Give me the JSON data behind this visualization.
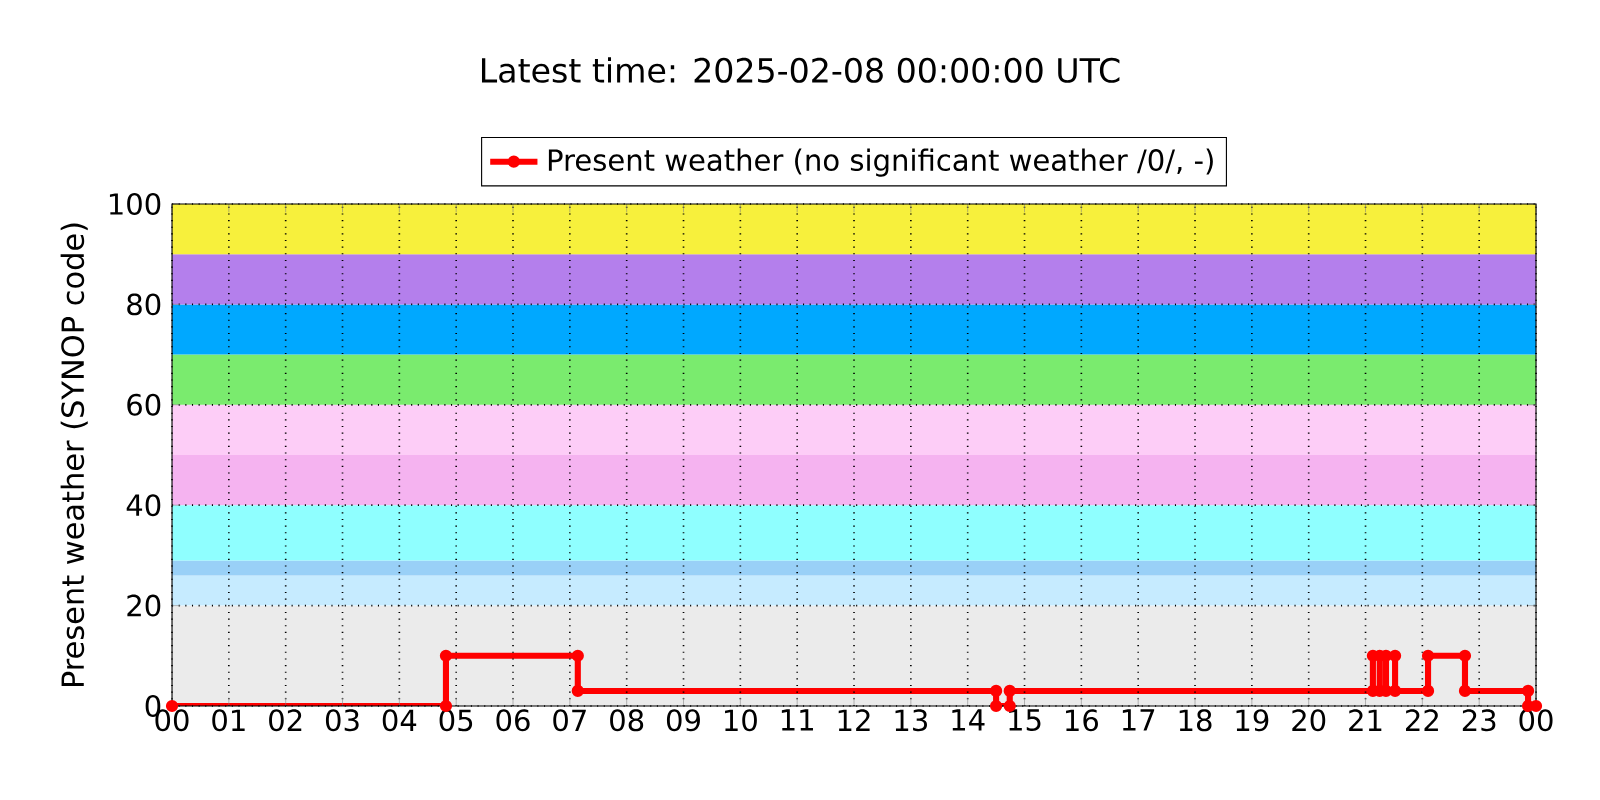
{
  "chart_data": {
    "type": "line",
    "title": "Latest time: 2025-02-08 00:00:00 UTC",
    "ylabel": "Present weather (SYNOP code)",
    "x": [
      0,
      4.82,
      4.82,
      7.14,
      7.14,
      14.5,
      14.5,
      14.74,
      14.74,
      21.13,
      21.13,
      21.25,
      21.25,
      21.36,
      21.36,
      21.52,
      21.52,
      22.1,
      22.1,
      22.75,
      22.75,
      23.86,
      23.86,
      24
    ],
    "series": [
      {
        "name": "Present weather (no significant weather /0/, -)",
        "color": "#ff0000",
        "values": [
          0,
          0,
          10,
          10,
          3,
          3,
          0,
          0,
          3,
          3,
          10,
          10,
          3,
          3,
          10,
          10,
          3,
          3,
          10,
          10,
          3,
          3,
          0,
          0
        ]
      }
    ],
    "xlim": [
      0,
      24
    ],
    "ylim": [
      0,
      100
    ],
    "xticks": [
      {
        "value": 0,
        "label": "00"
      },
      {
        "value": 1,
        "label": "01"
      },
      {
        "value": 2,
        "label": "02"
      },
      {
        "value": 3,
        "label": "03"
      },
      {
        "value": 4,
        "label": "04"
      },
      {
        "value": 5,
        "label": "05"
      },
      {
        "value": 6,
        "label": "06"
      },
      {
        "value": 7,
        "label": "07"
      },
      {
        "value": 8,
        "label": "08"
      },
      {
        "value": 9,
        "label": "09"
      },
      {
        "value": 10,
        "label": "10"
      },
      {
        "value": 11,
        "label": "11"
      },
      {
        "value": 12,
        "label": "12"
      },
      {
        "value": 13,
        "label": "13"
      },
      {
        "value": 14,
        "label": "14"
      },
      {
        "value": 15,
        "label": "15"
      },
      {
        "value": 16,
        "label": "16"
      },
      {
        "value": 17,
        "label": "17"
      },
      {
        "value": 18,
        "label": "18"
      },
      {
        "value": 19,
        "label": "19"
      },
      {
        "value": 20,
        "label": "20"
      },
      {
        "value": 21,
        "label": "21"
      },
      {
        "value": 22,
        "label": "22"
      },
      {
        "value": 23,
        "label": "23"
      },
      {
        "value": 24,
        "label": "00"
      }
    ],
    "yticks": [
      0,
      20,
      40,
      60,
      80,
      100
    ],
    "grid": true,
    "legend": "top",
    "marker": "circle",
    "line_style": "solid",
    "bands": [
      {
        "axis": "y",
        "from": 0,
        "to": 20,
        "color": "#ebebeb"
      },
      {
        "axis": "y",
        "from": 20,
        "to": 26,
        "color": "#c6ebff"
      },
      {
        "axis": "y",
        "from": 26,
        "to": 29,
        "color": "#99d0f7"
      },
      {
        "axis": "y",
        "from": 29,
        "to": 40,
        "color": "#8fffff"
      },
      {
        "axis": "y",
        "from": 40,
        "to": 50,
        "color": "#f5b3f0"
      },
      {
        "axis": "y",
        "from": 50,
        "to": 60,
        "color": "#fdcdf7"
      },
      {
        "axis": "y",
        "from": 60,
        "to": 70,
        "color": "#7aeb6e"
      },
      {
        "axis": "y",
        "from": 70,
        "to": 80,
        "color": "#00a8ff"
      },
      {
        "axis": "y",
        "from": 80,
        "to": 90,
        "color": "#b47fec"
      },
      {
        "axis": "y",
        "from": 90,
        "to": 100,
        "color": "#f7f03c"
      }
    ]
  }
}
